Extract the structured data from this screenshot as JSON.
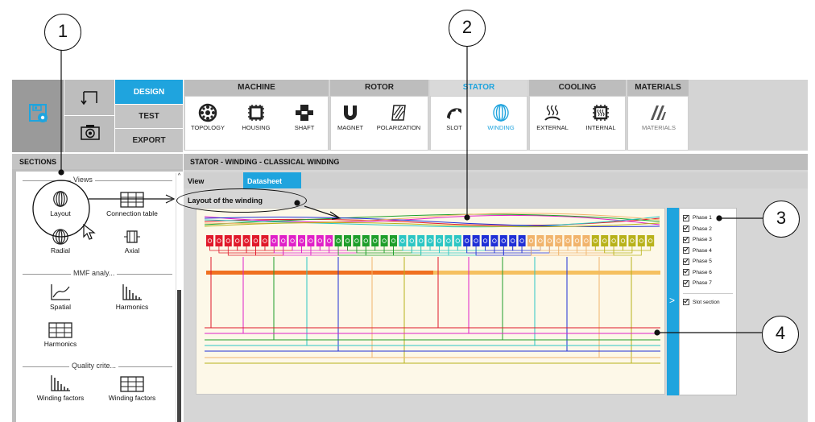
{
  "callouts": [
    "1",
    "2",
    "3",
    "4"
  ],
  "nav": {
    "design": "DESIGN",
    "test": "TEST",
    "export": "EXPORT"
  },
  "toolbar_groups": [
    {
      "label": "MACHINE",
      "tools": [
        "TOPOLOGY",
        "HOUSING",
        "SHAFT"
      ]
    },
    {
      "label": "ROTOR",
      "tools": [
        "MAGNET",
        "POLARIZATION"
      ]
    },
    {
      "label": "STATOR",
      "tools": [
        "SLOT",
        "WINDING"
      ]
    },
    {
      "label": "COOLING",
      "tools": [
        "EXTERNAL",
        "INTERNAL"
      ]
    },
    {
      "label": "MATERIALS",
      "tools": [
        "MATERIALS"
      ]
    }
  ],
  "sections": {
    "title": "SECTIONS",
    "views_label": "Views",
    "views": [
      "Layout",
      "Connection table",
      "Radial",
      "Axial"
    ],
    "mmf_label": "MMF analy...",
    "mmf": [
      "Spatial",
      "Harmonics",
      "Harmonics"
    ],
    "quality_label": "Quality crite...",
    "quality": [
      "Winding factors",
      "Winding factors"
    ]
  },
  "main": {
    "title": "STATOR - WINDING - CLASSICAL WINDING",
    "tabs": [
      "View",
      "Datasheet"
    ],
    "subtitle": "Layout of the winding"
  },
  "legend": {
    "phases": [
      "Phase 1",
      "Phase 2",
      "Phase 3",
      "Phase 4",
      "Phase 5",
      "Phase 6",
      "Phase 7"
    ],
    "slot_section": "Slot section",
    "expand_glyph": ">"
  },
  "colors": {
    "accent": "#1fa4de",
    "phases": [
      "#e0192a",
      "#e020c8",
      "#1e9e2a",
      "#2cc6c4",
      "#1f2fd6",
      "#f1b46c",
      "#b8b21a"
    ]
  }
}
